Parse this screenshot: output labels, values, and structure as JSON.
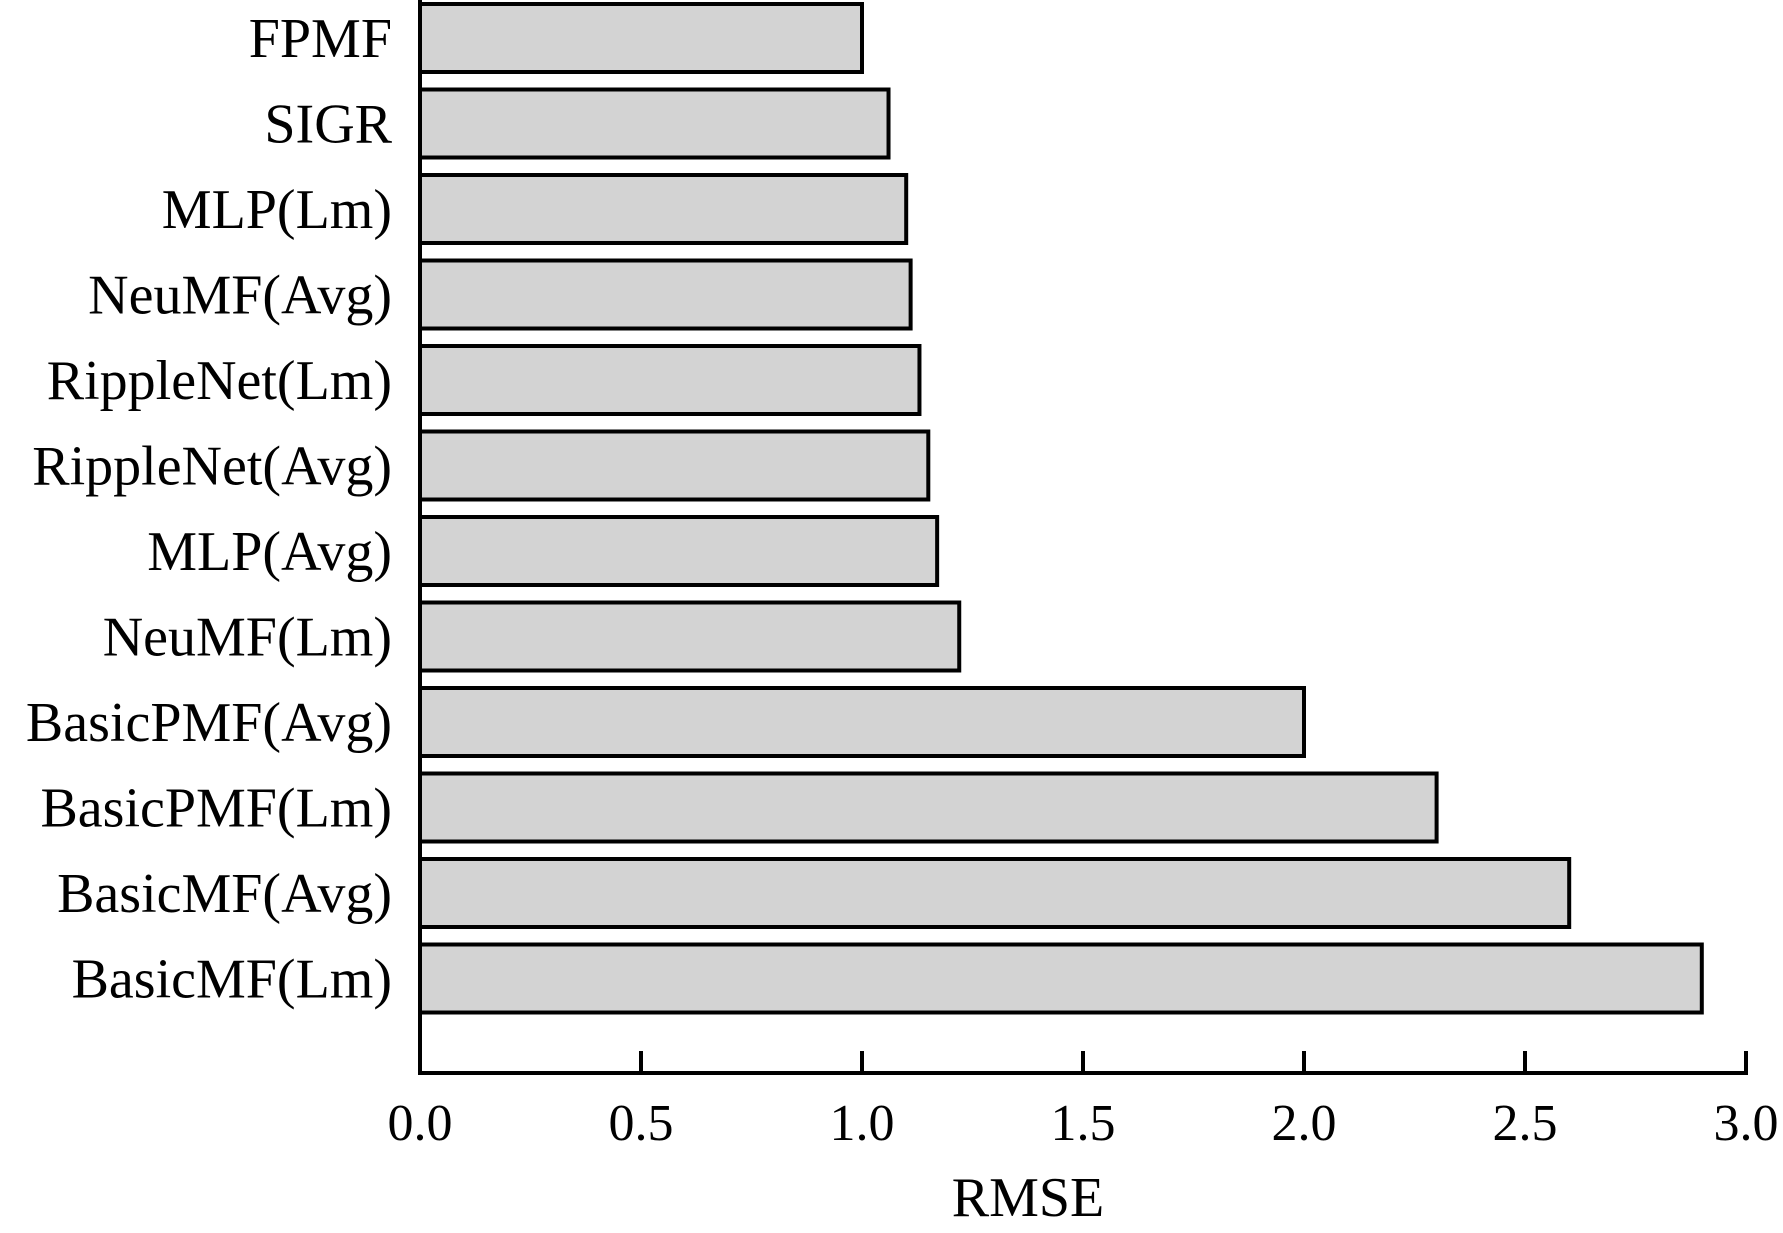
{
  "chart_data": {
    "type": "bar",
    "orientation": "horizontal",
    "categories": [
      "FPMF",
      "SIGR",
      "MLP(Lm)",
      "NeuMF(Avg)",
      "RippleNet(Lm)",
      "RippleNet(Avg)",
      "MLP(Avg)",
      "NeuMF(Lm)",
      "BasicPMF(Avg)",
      "BasicPMF(Lm)",
      "BasicMF(Avg)",
      "BasicMF(Lm)"
    ],
    "values": [
      1.0,
      1.06,
      1.1,
      1.11,
      1.13,
      1.15,
      1.17,
      1.22,
      2.0,
      2.3,
      2.6,
      2.9
    ],
    "xlabel": "RMSE",
    "ylabel": "",
    "xlim": [
      0.0,
      3.0
    ],
    "xticks": [
      "0.0",
      "0.5",
      "1.0",
      "1.5",
      "2.0",
      "2.5",
      "3.0"
    ],
    "grid": false,
    "legend": "none",
    "bar_fill": "#d3d3d3",
    "bar_stroke": "#000000"
  }
}
